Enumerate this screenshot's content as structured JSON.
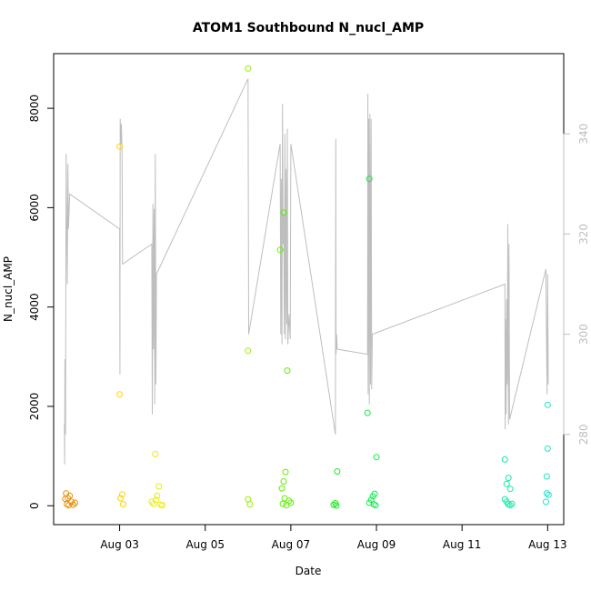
{
  "chart_data": {
    "type": "scatter",
    "title": "ATOM1 Southbound N_nucl_AMP",
    "xlabel": "Date",
    "ylabel": "N_nucl_AMP",
    "xlim": [
      "2023-08-01T11:00",
      "2023-08-13T09:00"
    ],
    "ylim": [
      -380,
      9100
    ],
    "y2lim": [
      262,
      356
    ],
    "x_ticks": [
      {
        "label": "Aug 03",
        "x": "2023-08-03T00:00"
      },
      {
        "label": "Aug 05",
        "x": "2023-08-05T00:00"
      },
      {
        "label": "Aug 07",
        "x": "2023-08-07T00:00"
      },
      {
        "label": "Aug 09",
        "x": "2023-08-09T00:00"
      },
      {
        "label": "Aug 11",
        "x": "2023-08-11T00:00"
      },
      {
        "label": "Aug 13",
        "x": "2023-08-13T00:00"
      }
    ],
    "y_ticks": [
      0,
      2000,
      4000,
      6000,
      8000
    ],
    "y2_ticks": [
      280,
      300,
      320,
      340
    ],
    "grid": false,
    "box": true,
    "series": [
      {
        "color": "#e8900a",
        "points": [
          [
            "2023-08-01T18:00",
            250
          ],
          [
            "2023-08-01T19:00",
            150
          ],
          [
            "2023-08-01T20:00",
            200
          ],
          [
            "2023-08-01T21:00",
            80
          ],
          [
            "2023-08-01T18:30",
            30
          ],
          [
            "2023-08-01T19:30",
            10
          ],
          [
            "2023-08-01T22:00",
            20
          ],
          [
            "2023-08-01T23:00",
            60
          ],
          [
            "2023-08-01T17:30",
            140
          ]
        ]
      },
      {
        "color": "#ffd200",
        "points": [
          [
            "2023-08-03T00:00",
            7230
          ],
          [
            "2023-08-03T00:00",
            2240
          ],
          [
            "2023-08-03T00:30",
            150
          ],
          [
            "2023-08-03T01:30",
            230
          ],
          [
            "2023-08-03T02:00",
            30
          ]
        ]
      },
      {
        "color": "#e8ee00",
        "points": [
          [
            "2023-08-03T20:00",
            1040
          ],
          [
            "2023-08-03T22:00",
            390
          ],
          [
            "2023-08-03T21:00",
            200
          ],
          [
            "2023-08-03T18:00",
            80
          ],
          [
            "2023-08-03T19:00",
            40
          ],
          [
            "2023-08-03T23:00",
            20
          ],
          [
            "2023-08-04T00:00",
            10
          ],
          [
            "2023-08-03T20:30",
            120
          ]
        ]
      },
      {
        "color": "#98f000",
        "points": [
          [
            "2023-08-06T00:00",
            8800
          ],
          [
            "2023-08-06T00:00",
            3120
          ],
          [
            "2023-08-06T00:00",
            130
          ],
          [
            "2023-08-06T01:00",
            30
          ]
        ]
      },
      {
        "color": "#5ef000",
        "points": [
          [
            "2023-08-06T18:00",
            5150
          ],
          [
            "2023-08-06T20:00",
            5900
          ],
          [
            "2023-08-06T22:00",
            2720
          ],
          [
            "2023-08-06T21:00",
            680
          ],
          [
            "2023-08-06T20:00",
            490
          ],
          [
            "2023-08-06T19:00",
            350
          ],
          [
            "2023-08-06T20:30",
            150
          ],
          [
            "2023-08-06T23:00",
            100
          ],
          [
            "2023-08-06T19:30",
            40
          ],
          [
            "2023-08-06T21:30",
            10
          ],
          [
            "2023-08-07T00:00",
            60
          ]
        ]
      },
      {
        "color": "#1ee81e",
        "points": [
          [
            "2023-08-08T02:00",
            690
          ],
          [
            "2023-08-08T01:00",
            50
          ],
          [
            "2023-08-08T00:00",
            20
          ],
          [
            "2023-08-08T01:30",
            5
          ]
        ]
      },
      {
        "color": "#18e84e",
        "points": [
          [
            "2023-08-08T20:00",
            6580
          ],
          [
            "2023-08-08T19:00",
            1870
          ],
          [
            "2023-08-09T00:00",
            980
          ],
          [
            "2023-08-08T23:00",
            240
          ],
          [
            "2023-08-08T22:00",
            190
          ],
          [
            "2023-08-08T21:00",
            120
          ],
          [
            "2023-08-08T20:00",
            60
          ],
          [
            "2023-08-08T22:30",
            30
          ],
          [
            "2023-08-08T23:30",
            10
          ]
        ]
      },
      {
        "color": "#18e8a8",
        "points": [
          [
            "2023-08-12T00:00",
            930
          ],
          [
            "2023-08-12T02:00",
            560
          ],
          [
            "2023-08-12T01:00",
            440
          ],
          [
            "2023-08-12T03:00",
            340
          ],
          [
            "2023-08-12T00:00",
            130
          ],
          [
            "2023-08-12T01:00",
            80
          ],
          [
            "2023-08-12T02:00",
            30
          ],
          [
            "2023-08-12T03:00",
            10
          ],
          [
            "2023-08-12T04:00",
            40
          ]
        ]
      },
      {
        "color": "#18e8c8",
        "points": [
          [
            "2023-08-13T00:00",
            2030
          ],
          [
            "2023-08-13T00:00",
            1150
          ],
          [
            "2023-08-12T23:30",
            590
          ],
          [
            "2023-08-12T23:30",
            250
          ],
          [
            "2023-08-13T00:30",
            220
          ],
          [
            "2023-08-12T23:00",
            80
          ]
        ]
      }
    ],
    "line2": {
      "color": "#bebebe",
      "points": [
        [
          "2023-08-01T17:00",
          282
        ],
        [
          "2023-08-01T17:10",
          274
        ],
        [
          "2023-08-01T17:20",
          295
        ],
        [
          "2023-08-01T17:40",
          280
        ],
        [
          "2023-08-01T18:00",
          336
        ],
        [
          "2023-08-01T18:20",
          321
        ],
        [
          "2023-08-01T18:40",
          310
        ],
        [
          "2023-08-01T19:00",
          334
        ],
        [
          "2023-08-01T19:20",
          321
        ],
        [
          "2023-08-01T20:00",
          328
        ],
        [
          "2023-08-03T00:00",
          321
        ],
        [
          "2023-08-03T00:10",
          292
        ],
        [
          "2023-08-03T00:20",
          343
        ],
        [
          "2023-08-03T00:40",
          338
        ],
        [
          "2023-08-03T01:00",
          342
        ],
        [
          "2023-08-03T01:20",
          337
        ],
        [
          "2023-08-03T01:40",
          314
        ],
        [
          "2023-08-03T18:00",
          318
        ],
        [
          "2023-08-03T18:20",
          284
        ],
        [
          "2023-08-03T18:40",
          326
        ],
        [
          "2023-08-03T19:00",
          297
        ],
        [
          "2023-08-03T19:20",
          325
        ],
        [
          "2023-08-03T19:40",
          286
        ],
        [
          "2023-08-03T20:00",
          336
        ],
        [
          "2023-08-03T20:20",
          290
        ],
        [
          "2023-08-03T20:40",
          312
        ],
        [
          "2023-08-06T00:00",
          351
        ],
        [
          "2023-08-06T00:10",
          330
        ],
        [
          "2023-08-06T00:20",
          300
        ],
        [
          "2023-08-06T18:00",
          338
        ],
        [
          "2023-08-06T18:20",
          300
        ],
        [
          "2023-08-06T18:40",
          331
        ],
        [
          "2023-08-06T19:00",
          298
        ],
        [
          "2023-08-06T19:20",
          346
        ],
        [
          "2023-08-06T19:40",
          318
        ],
        [
          "2023-08-06T20:00",
          324
        ],
        [
          "2023-08-06T20:20",
          300
        ],
        [
          "2023-08-06T20:40",
          340
        ],
        [
          "2023-08-06T21:00",
          299
        ],
        [
          "2023-08-06T21:20",
          333
        ],
        [
          "2023-08-06T21:40",
          302
        ],
        [
          "2023-08-06T22:00",
          341
        ],
        [
          "2023-08-06T22:20",
          298
        ],
        [
          "2023-08-06T23:00",
          304
        ],
        [
          "2023-08-06T23:40",
          299
        ],
        [
          "2023-08-07T00:00",
          338
        ],
        [
          "2023-08-08T01:00",
          280
        ],
        [
          "2023-08-08T01:10",
          339
        ],
        [
          "2023-08-08T01:20",
          296
        ],
        [
          "2023-08-08T01:40",
          300
        ],
        [
          "2023-08-08T02:00",
          297
        ],
        [
          "2023-08-08T19:00",
          296
        ],
        [
          "2023-08-08T19:10",
          348
        ],
        [
          "2023-08-08T19:20",
          288
        ],
        [
          "2023-08-08T19:40",
          343
        ],
        [
          "2023-08-08T20:00",
          286
        ],
        [
          "2023-08-08T20:20",
          344
        ],
        [
          "2023-08-08T20:40",
          290
        ],
        [
          "2023-08-08T21:00",
          343
        ],
        [
          "2023-08-08T21:20",
          289
        ],
        [
          "2023-08-08T21:40",
          300
        ],
        [
          "2023-08-12T00:00",
          310
        ],
        [
          "2023-08-12T00:10",
          281
        ],
        [
          "2023-08-12T00:20",
          303
        ],
        [
          "2023-08-12T00:40",
          284
        ],
        [
          "2023-08-12T01:00",
          307
        ],
        [
          "2023-08-12T01:20",
          290
        ],
        [
          "2023-08-12T01:40",
          322
        ],
        [
          "2023-08-12T02:00",
          282
        ],
        [
          "2023-08-12T02:20",
          318
        ],
        [
          "2023-08-12T02:40",
          283
        ],
        [
          "2023-08-12T23:00",
          313
        ],
        [
          "2023-08-12T23:20",
          300
        ],
        [
          "2023-08-12T23:40",
          288
        ],
        [
          "2023-08-13T00:00",
          312
        ],
        [
          "2023-08-13T00:20",
          290
        ]
      ]
    }
  }
}
